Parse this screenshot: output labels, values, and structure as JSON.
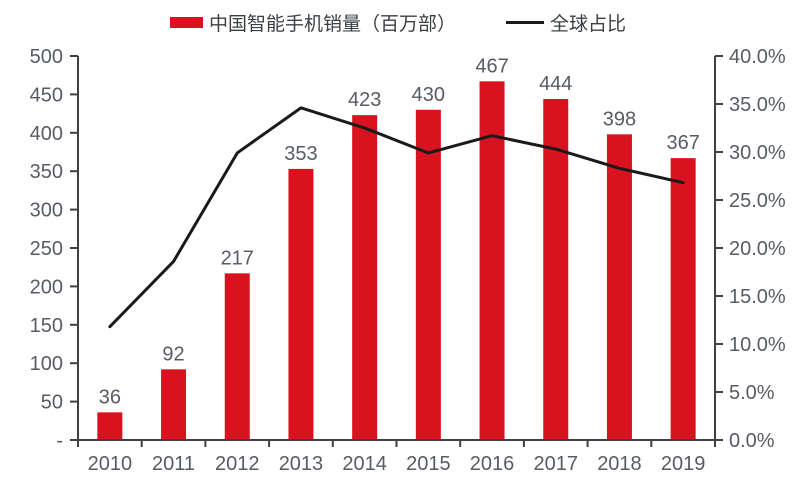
{
  "legend": {
    "items": [
      {
        "label": "中国智能手机销量（百万部）",
        "swatch": "bar",
        "color": "#d9121f"
      },
      {
        "label": "全球占比",
        "swatch": "line",
        "color": "#1a1a1a"
      }
    ]
  },
  "chart_data": {
    "type": "bar+line",
    "categories": [
      "2010",
      "2011",
      "2012",
      "2013",
      "2014",
      "2015",
      "2016",
      "2017",
      "2018",
      "2019"
    ],
    "series": [
      {
        "name": "中国智能手机销量（百万部）",
        "type": "bar",
        "axis": "left",
        "color": "#d9121f",
        "values": [
          36,
          92,
          217,
          353,
          423,
          430,
          467,
          444,
          398,
          367
        ]
      },
      {
        "name": "全球占比",
        "type": "line",
        "axis": "right",
        "color": "#1a1a1a",
        "values": [
          11.8,
          18.6,
          29.9,
          34.6,
          32.5,
          29.9,
          31.7,
          30.3,
          28.3,
          26.8
        ]
      }
    ],
    "bar_labels": [
      "36",
      "92",
      "217",
      "353",
      "423",
      "430",
      "467",
      "444",
      "398",
      "367"
    ],
    "left_axis": {
      "min": 0,
      "max": 500,
      "tick_labels": [
        "500",
        "450",
        "400",
        "350",
        "300",
        "250",
        "200",
        "150",
        "100",
        "50",
        "-"
      ]
    },
    "right_axis": {
      "min": 0,
      "max": 40,
      "tick_labels": [
        "40.0%",
        "35.0%",
        "30.0%",
        "25.0%",
        "20.0%",
        "15.0%",
        "10.0%",
        "5.0%",
        "0.0%"
      ]
    },
    "title": "",
    "xlabel": "",
    "ylabel": "",
    "grid": false,
    "legend_position": "top"
  }
}
